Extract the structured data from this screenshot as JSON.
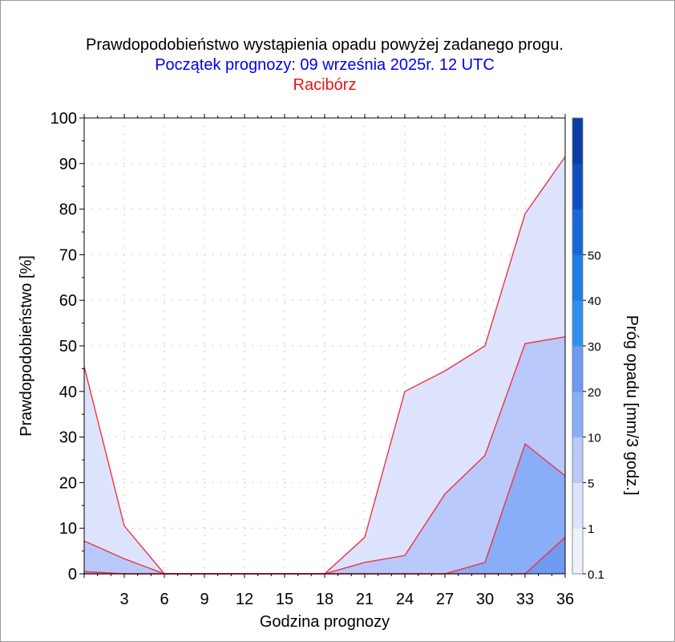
{
  "title": {
    "line1": "Prawdopodobieństwo wystąpienia opadu powyżej zadanego progu.",
    "line2": "Początek prognozy: 09 września 2025r. 12 UTC",
    "line3": "Racibórz",
    "colors": {
      "line1": "#000000",
      "line2": "#0000ee",
      "line3": "#ee1111"
    }
  },
  "chart_data": {
    "type": "area",
    "xlabel": "Godzina prognozy",
    "ylabel": "Prawdopodobieństwo [%]",
    "colorbar_label": "Próg opadu [mm/3 godz.]",
    "x": [
      0,
      3,
      6,
      9,
      12,
      15,
      18,
      21,
      24,
      27,
      30,
      33,
      36
    ],
    "x_tick_labels": [
      "3",
      "6",
      "9",
      "12",
      "15",
      "18",
      "21",
      "24",
      "27",
      "30",
      "33",
      "36"
    ],
    "xlim": [
      0,
      36
    ],
    "ylim": [
      0,
      100
    ],
    "y_ticks": [
      0,
      10,
      20,
      30,
      40,
      50,
      60,
      70,
      80,
      90,
      100
    ],
    "grid": "dotted",
    "line_color": "#ee3344",
    "series": [
      {
        "threshold": "0.1",
        "color": "#dde3fd",
        "values": [
          45.5,
          10.5,
          0,
          0,
          0,
          0,
          0,
          8,
          40,
          44.5,
          50,
          79,
          91.5
        ]
      },
      {
        "threshold": "1",
        "color": "#b9c9fb",
        "values": [
          7.2,
          3.3,
          0,
          0,
          0,
          0,
          0,
          2.5,
          4,
          17.5,
          26,
          50.5,
          52
        ]
      },
      {
        "threshold": "5",
        "color": "#8aadf7",
        "values": [
          0.5,
          0,
          0,
          0,
          0,
          0,
          0,
          0,
          0,
          0,
          2.5,
          28.5,
          21.5
        ]
      },
      {
        "threshold": "10",
        "color": "#6f9af2",
        "values": [
          0,
          0,
          0,
          0,
          0,
          0,
          0,
          0,
          0,
          0,
          0,
          0,
          8
        ]
      }
    ],
    "colorbar": {
      "tick_labels": [
        "0.1",
        "1",
        "5",
        "10",
        "20",
        "30",
        "40",
        "50"
      ],
      "bands": [
        "#eef1fe",
        "#dde3fd",
        "#b9c9fb",
        "#8aadf7",
        "#6f9af2",
        "#2f90ee",
        "#1f7de6",
        "#1767d6",
        "#0e4fbf",
        "#0a3ea6"
      ]
    }
  }
}
